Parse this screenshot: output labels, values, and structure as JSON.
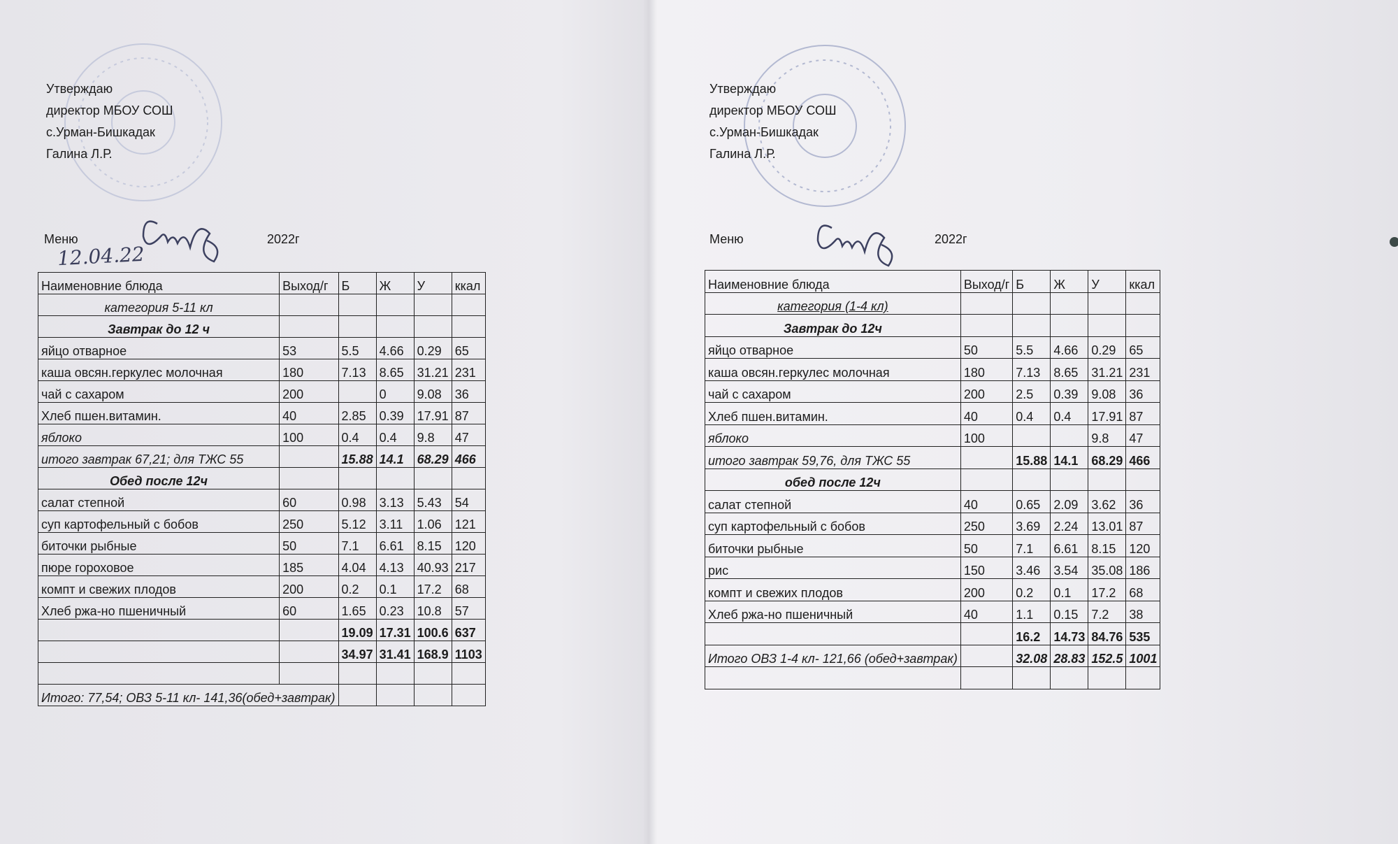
{
  "pages": [
    {
      "approval": [
        "Утверждаю",
        "директор МБОУ СОШ",
        "с.Урман-Бишкадак",
        "Галина Л.Р."
      ],
      "menu_label": "Меню",
      "date": "12.04.22",
      "year": "2022г",
      "table": {
        "header": [
          "Наименовние блюда",
          "Выход/г",
          "Б",
          "Ж",
          "У",
          "ккал"
        ],
        "rows": [
          {
            "cells": [
              "категория 5-11 кл",
              null,
              null,
              null,
              null,
              null
            ],
            "name_style": "italic",
            "name_align": "center"
          },
          {
            "cells": [
              "Завтрак до 12 ч",
              null,
              null,
              null,
              null,
              null
            ],
            "name_style": "bold-italic",
            "name_align": "center"
          },
          {
            "cells": [
              "яйцо отварное",
              "53",
              "5.5",
              "4.66",
              "0.29",
              "65"
            ]
          },
          {
            "cells": [
              "каша овсян.геркулес молочная",
              "180",
              "7.13",
              "8.65",
              "31.21",
              "231"
            ]
          },
          {
            "cells": [
              "чай с сахаром",
              "200",
              null,
              "0",
              "9.08",
              "36"
            ]
          },
          {
            "cells": [
              "Хлеб  пшен.витамин.",
              "40",
              "2.85",
              "0.39",
              "17.91",
              "87"
            ]
          },
          {
            "cells": [
              "яблоко",
              "100",
              "0.4",
              "0.4",
              "9.8",
              "47"
            ],
            "name_style": "italic"
          },
          {
            "cells": [
              "итого завтрак 67,21; для ТЖС 55",
              null,
              "15.88",
              "14.1",
              "68.29",
              "466"
            ],
            "name_style": "italic",
            "num_style": "bold-italic"
          },
          {
            "cells": [
              "Обед  после 12ч",
              null,
              null,
              null,
              null,
              null
            ],
            "name_style": "bold-italic",
            "name_align": "center"
          },
          {
            "cells": [
              "салат степной",
              "60",
              "0.98",
              "3.13",
              "5.43",
              "54"
            ]
          },
          {
            "cells": [
              "суп картофельный с бобов",
              "250",
              "5.12",
              "3.11",
              "1.06",
              "121"
            ]
          },
          {
            "cells": [
              "биточки рыбные",
              "50",
              "7.1",
              "6.61",
              "8.15",
              "120"
            ]
          },
          {
            "cells": [
              "пюре гороховое",
              "185",
              "4.04",
              "4.13",
              "40.93",
              "217"
            ]
          },
          {
            "cells": [
              "компт и свежих плодов",
              "200",
              "0.2",
              "0.1",
              "17.2",
              "68"
            ]
          },
          {
            "cells": [
              "Хлеб ржа-но пшеничный",
              "60",
              "1.65",
              "0.23",
              "10.8",
              "57"
            ]
          },
          {
            "cells": [
              null,
              null,
              "19.09",
              "17.31",
              "100.6",
              "637"
            ],
            "num_style": "bold"
          },
          {
            "cells": [
              null,
              null,
              "34.97",
              "31.41",
              "168.9",
              "1103"
            ],
            "num_style": "bold"
          },
          {
            "cells": [
              null,
              null,
              null,
              null,
              null,
              null
            ]
          },
          {
            "cells": [
              "Итого: 77,54;  ОВЗ 5-11 кл- 141,36(обед+завтрак)",
              null,
              null,
              null,
              null,
              null
            ],
            "name_style": "italic",
            "merge": true
          }
        ]
      }
    },
    {
      "approval": [
        "Утверждаю",
        "директор МБОУ СОШ",
        "с.Урман-Бишкадак",
        "Галина Л.Р."
      ],
      "menu_label": "Меню",
      "year": "2022г",
      "table": {
        "header": [
          "Наименовние блюда",
          "Выход/г",
          "Б",
          "Ж",
          "У",
          "ккал"
        ],
        "rows": [
          {
            "cells": [
              "категория  (1-4 кл)",
              null,
              null,
              null,
              null,
              null
            ],
            "name_style": "italic-underline",
            "name_align": "center"
          },
          {
            "cells": [
              "Завтрак до 12ч",
              null,
              null,
              null,
              null,
              null
            ],
            "name_style": "bold-italic",
            "name_align": "center"
          },
          {
            "cells": [
              "яйцо отварное",
              "50",
              "5.5",
              "4.66",
              "0.29",
              "65"
            ]
          },
          {
            "cells": [
              "каша овсян.геркулес молочная",
              "180",
              "7.13",
              "8.65",
              "31.21",
              "231"
            ]
          },
          {
            "cells": [
              "чай с сахаром",
              "200",
              "2.5",
              "0.39",
              "9.08",
              "36"
            ]
          },
          {
            "cells": [
              "Хлеб  пшен.витамин.",
              "40",
              "0.4",
              "0.4",
              "17.91",
              "87"
            ]
          },
          {
            "cells": [
              "яблоко",
              "100",
              null,
              null,
              "9.8",
              "47"
            ],
            "name_style": "italic"
          },
          {
            "cells": [
              "итого завтрак 59,76, для ТЖС 55",
              null,
              "15.88",
              "14.1",
              "68.29",
              "466"
            ],
            "name_style": "italic",
            "num_style": "bold"
          },
          {
            "cells": [
              "обед после 12ч",
              null,
              null,
              null,
              null,
              null
            ],
            "name_style": "bold-italic",
            "name_align": "center"
          },
          {
            "cells": [
              "салат степной",
              "40",
              "0.65",
              "2.09",
              "3.62",
              "36"
            ]
          },
          {
            "cells": [
              "суп картофельный с бобов",
              "250",
              "3.69",
              "2.24",
              "13.01",
              "87"
            ]
          },
          {
            "cells": [
              "биточки рыбные",
              "50",
              "7.1",
              "6.61",
              "8.15",
              "120"
            ]
          },
          {
            "cells": [
              "рис",
              "150",
              "3.46",
              "3.54",
              "35.08",
              "186"
            ]
          },
          {
            "cells": [
              "компт и свежих плодов",
              "200",
              "0.2",
              "0.1",
              "17.2",
              "68"
            ]
          },
          {
            "cells": [
              "Хлеб ржа-но пшеничный",
              "40",
              "1.1",
              "0.15",
              "7.2",
              "38"
            ]
          },
          {
            "cells": [
              null,
              null,
              "16.2",
              "14.73",
              "84.76",
              "535"
            ],
            "num_style": "bold"
          },
          {
            "cells": [
              "Итого  ОВЗ 1-4 кл- 121,66 (обед+завтрак)",
              null,
              "32.08",
              "28.83",
              "152.5",
              "1001"
            ],
            "name_style": "italic",
            "num_style": "bold-italic",
            "num_align": "right"
          },
          {
            "cells": [
              null,
              null,
              null,
              null,
              null,
              null
            ]
          }
        ]
      }
    }
  ]
}
